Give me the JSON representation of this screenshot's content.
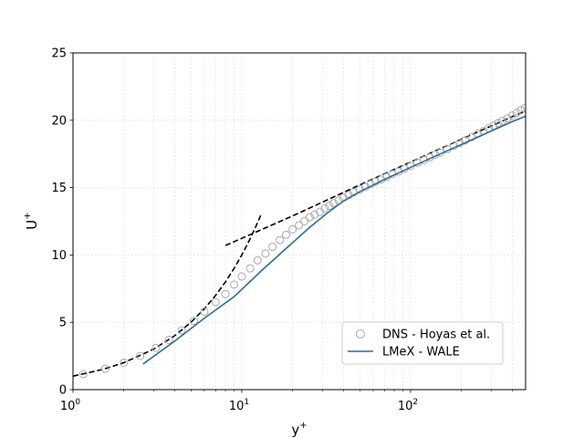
{
  "chart_data": {
    "type": "line",
    "xscale": "log",
    "xlim": [
      1,
      480
    ],
    "ylim": [
      0,
      25
    ],
    "xlabel_base": "y",
    "xlabel_sup": "+",
    "ylabel_base": "U",
    "ylabel_sup": "+",
    "x_ticks": [
      {
        "value": 1,
        "base": "10",
        "exp": "0"
      },
      {
        "value": 10,
        "base": "10",
        "exp": "1"
      },
      {
        "value": 100,
        "base": "10",
        "exp": "2"
      }
    ],
    "y_ticks": [
      {
        "value": 0,
        "label": "0"
      },
      {
        "value": 5,
        "label": "5"
      },
      {
        "value": 10,
        "label": "10"
      },
      {
        "value": 15,
        "label": "15"
      },
      {
        "value": 20,
        "label": "20"
      },
      {
        "value": 25,
        "label": "25"
      }
    ],
    "grid": true,
    "legend_position": "lower-right",
    "colors": {
      "dns_marker": "#a8a8a8",
      "wale_line": "#2e6c9b",
      "reference_line": "#000000",
      "grid": "#dcdcdc"
    },
    "series": [
      {
        "name": "DNS - Hoyas et al.",
        "kind": "markers",
        "x": [
          1.15,
          1.55,
          2.0,
          2.5,
          3.1,
          3.7,
          4.4,
          5.2,
          6.0,
          7.0,
          8.0,
          9.0,
          10.0,
          11.2,
          12.4,
          13.8,
          15.2,
          16.8,
          18.3,
          20.0,
          21.8,
          23.5,
          25.3,
          27.0,
          29.0,
          31.0,
          33.0,
          35.0,
          37.5,
          40.0,
          43.0,
          46.0,
          50.0,
          54.0,
          58.0,
          62.0,
          67.0,
          72.0,
          78.0,
          85.0,
          92.0,
          100.0,
          110.0,
          120.0,
          130.0,
          140.0,
          150.0,
          165.0,
          180.0,
          195.0,
          210.0,
          230.0,
          250.0,
          270.0,
          290.0,
          310.0,
          330.0,
          350.0,
          375.0,
          400.0,
          425.0,
          450.0,
          475.0
        ],
        "y": [
          1.15,
          1.55,
          2.0,
          2.5,
          3.1,
          3.7,
          4.4,
          5.1,
          5.8,
          6.5,
          7.1,
          7.8,
          8.4,
          9.0,
          9.6,
          10.1,
          10.6,
          11.1,
          11.5,
          11.9,
          12.2,
          12.5,
          12.8,
          13.0,
          13.2,
          13.45,
          13.65,
          13.85,
          14.05,
          14.25,
          14.45,
          14.65,
          14.85,
          15.05,
          15.25,
          15.45,
          15.6,
          15.8,
          16.0,
          16.2,
          16.4,
          16.6,
          16.85,
          17.05,
          17.25,
          17.45,
          17.6,
          17.85,
          18.1,
          18.3,
          18.5,
          18.75,
          19.0,
          19.2,
          19.4,
          19.6,
          19.8,
          19.95,
          20.15,
          20.35,
          20.55,
          20.75,
          20.9
        ]
      },
      {
        "name": "LMeX - WALE",
        "kind": "line",
        "x": [
          2.6,
          4.0,
          6.0,
          9.0,
          13.0,
          18.0,
          25.0,
          32.0,
          40.0,
          50.0,
          70.0,
          100.0,
          150.0,
          200.0,
          300.0,
          400.0,
          480.0
        ],
        "y": [
          1.9,
          3.6,
          5.3,
          6.9,
          8.8,
          10.4,
          12.0,
          13.1,
          14.0,
          14.7,
          15.6,
          16.5,
          17.5,
          18.2,
          19.2,
          19.9,
          20.3
        ]
      },
      {
        "name": "",
        "kind": "reference-viscous-sublayer",
        "x": [
          1.0,
          1.5,
          2.0,
          3.0,
          4.0,
          5.0,
          6.0,
          7.0,
          8.0,
          9.0,
          10.0,
          11.0,
          12.0,
          13.0
        ],
        "y": [
          1.0,
          1.5,
          2.0,
          3.0,
          4.0,
          5.0,
          6.0,
          7.0,
          8.0,
          9.0,
          10.0,
          11.0,
          12.0,
          13.0
        ]
      },
      {
        "name": "",
        "kind": "reference-log-law",
        "x": [
          8.0,
          20.0,
          50.0,
          100.0,
          200.0,
          480.0
        ],
        "y": [
          10.7,
          12.9,
          15.2,
          16.9,
          18.6,
          20.7
        ]
      }
    ]
  }
}
